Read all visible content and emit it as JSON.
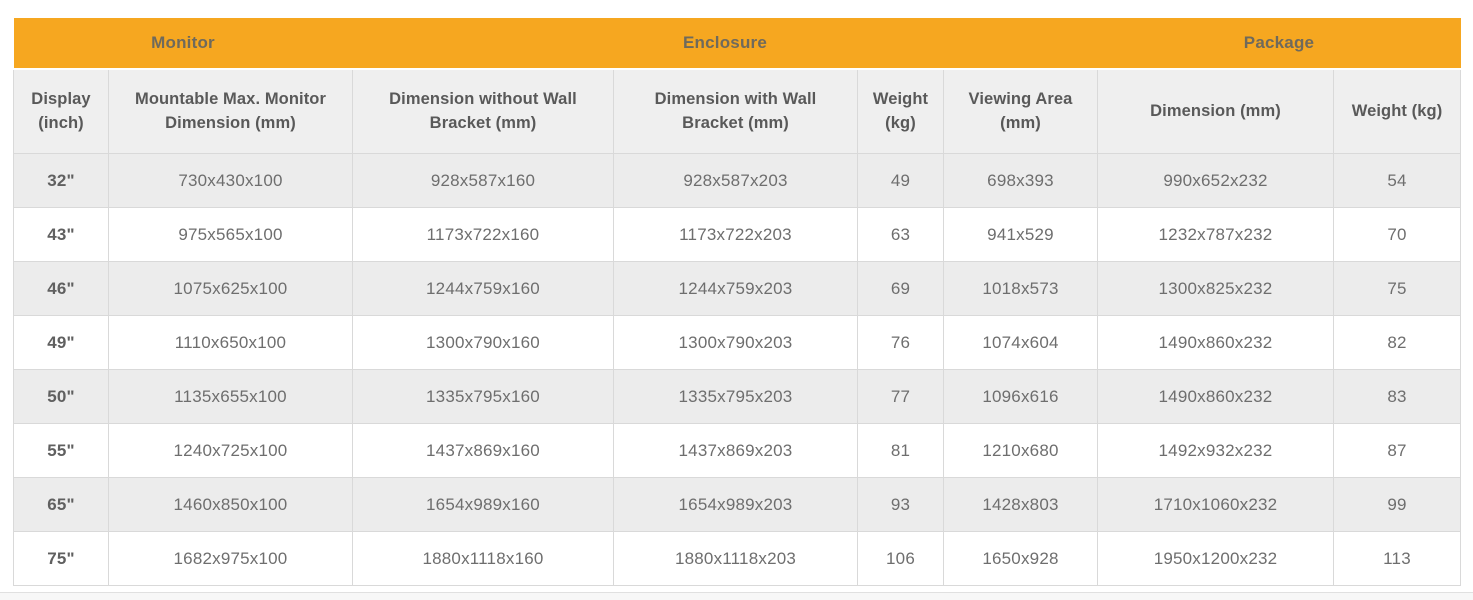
{
  "colors": {
    "accent_orange": "#F6A720",
    "stripe_gray": "#ECECEC",
    "border_gray": "#D9D9D9",
    "header_text": "#595959",
    "body_text": "#6E6E6E"
  },
  "table": {
    "groups": [
      {
        "label": "Monitor",
        "colspan": 2
      },
      {
        "label": "Enclosure",
        "colspan": 4
      },
      {
        "label": "Package",
        "colspan": 2
      }
    ],
    "columns": [
      "Display (inch)",
      "Mountable Max. Monitor Dimension (mm)",
      "Dimension without Wall Bracket (mm)",
      "Dimension with Wall Bracket (mm)",
      "Weight (kg)",
      "Viewing Area (mm)",
      "Dimension (mm)",
      "Weight (kg)"
    ],
    "column_keys": [
      "display-inch",
      "mountable-max-monitor-dimension",
      "dimension-without-wall-bracket",
      "dimension-with-wall-bracket",
      "enclosure-weight",
      "viewing-area",
      "package-dimension",
      "package-weight"
    ],
    "rows": [
      [
        "32\"",
        "730x430x100",
        "928x587x160",
        "928x587x203",
        "49",
        "698x393",
        "990x652x232",
        "54"
      ],
      [
        "43\"",
        "975x565x100",
        "1173x722x160",
        "1173x722x203",
        "63",
        "941x529",
        "1232x787x232",
        "70"
      ],
      [
        "46\"",
        "1075x625x100",
        "1244x759x160",
        "1244x759x203",
        "69",
        "1018x573",
        "1300x825x232",
        "75"
      ],
      [
        "49\"",
        "1110x650x100",
        "1300x790x160",
        "1300x790x203",
        "76",
        "1074x604",
        "1490x860x232",
        "82"
      ],
      [
        "50\"",
        "1135x655x100",
        "1335x795x160",
        "1335x795x203",
        "77",
        "1096x616",
        "1490x860x232",
        "83"
      ],
      [
        "55\"",
        "1240x725x100",
        "1437x869x160",
        "1437x869x203",
        "81",
        "1210x680",
        "1492x932x232",
        "87"
      ],
      [
        "65\"",
        "1460x850x100",
        "1654x989x160",
        "1654x989x203",
        "93",
        "1428x803",
        "1710x1060x232",
        "99"
      ],
      [
        "75\"",
        "1682x975x100",
        "1880x1118x160",
        "1880x1118x203",
        "106",
        "1650x928",
        "1950x1200x232",
        "113"
      ]
    ]
  }
}
